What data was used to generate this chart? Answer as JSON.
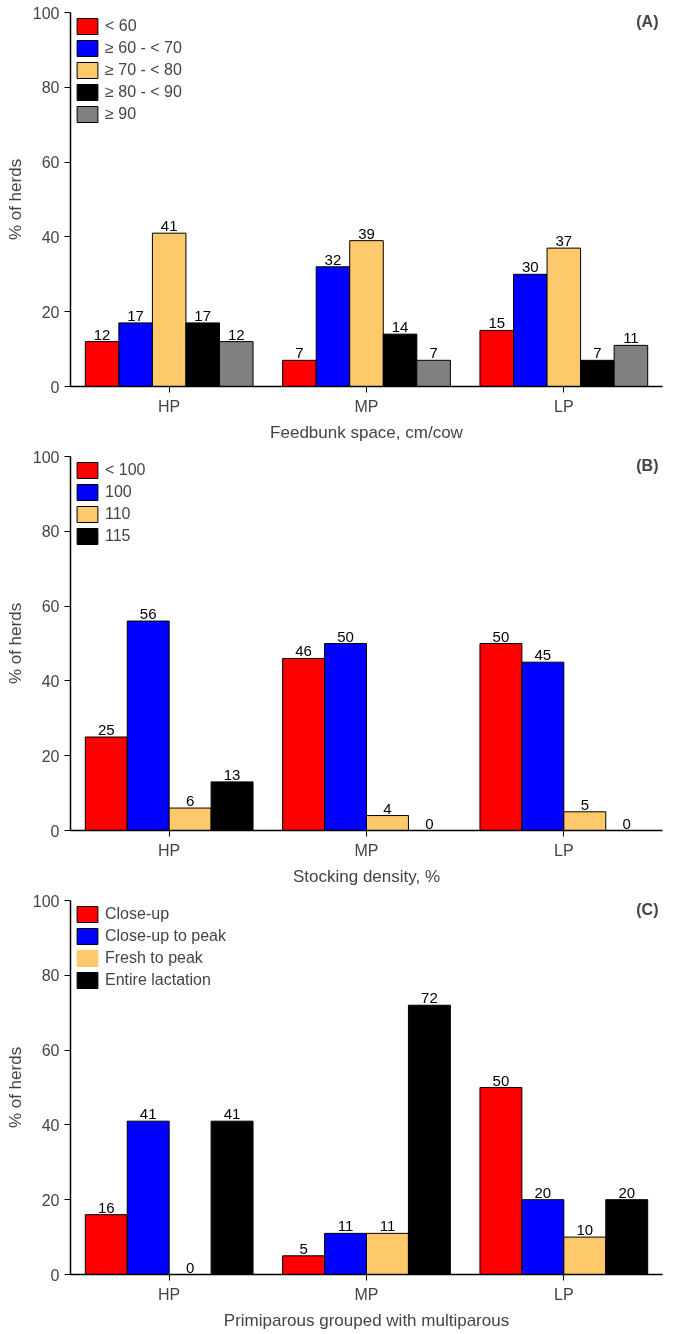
{
  "chart_data": [
    {
      "type": "bar",
      "categories": [
        "HP",
        "MP",
        "LP"
      ],
      "xlabel": "Feedbunk space, cm/cow",
      "ylabel": "% of herds",
      "ylim": [
        0,
        100
      ],
      "yticks": [
        0,
        20,
        40,
        60,
        80,
        100
      ],
      "grid": false,
      "legend": "top left",
      "data_labels": true,
      "annotations": [
        "(A)"
      ],
      "series": [
        {
          "name": "< 60",
          "color": "#ff0000",
          "values": [
            12,
            7,
            15
          ]
        },
        {
          "name": "≥ 60 - < 70",
          "color": "#0000ff",
          "values": [
            17,
            32,
            30
          ]
        },
        {
          "name": "≥ 70 - < 80",
          "color": "#fdc96b",
          "values": [
            41,
            39,
            37
          ]
        },
        {
          "name": "≥ 80 - < 90",
          "color": "#000000",
          "values": [
            17,
            14,
            7
          ]
        },
        {
          "name": "≥ 90",
          "color": "#808080",
          "values": [
            12,
            7,
            11
          ]
        }
      ]
    },
    {
      "type": "bar",
      "categories": [
        "HP",
        "MP",
        "LP"
      ],
      "xlabel": "Stocking density, %",
      "ylabel": "% of herds",
      "ylim": [
        0,
        100
      ],
      "yticks": [
        0,
        20,
        40,
        60,
        80,
        100
      ],
      "grid": false,
      "legend": "top left",
      "data_labels": true,
      "annotations": [
        "(B)"
      ],
      "series": [
        {
          "name": "< 100",
          "color": "#ff0000",
          "values": [
            25,
            46,
            50
          ]
        },
        {
          "name": "100",
          "color": "#0000ff",
          "values": [
            56,
            50,
            45
          ]
        },
        {
          "name": "110",
          "color": "#fdc96b",
          "values": [
            6,
            4,
            5
          ]
        },
        {
          "name": "115",
          "color": "#000000",
          "values": [
            13,
            0,
            0
          ]
        }
      ]
    },
    {
      "type": "bar",
      "categories": [
        "HP",
        "MP",
        "LP"
      ],
      "xlabel": "Primiparous grouped with multiparous",
      "ylabel": "% of herds",
      "ylim": [
        0,
        100
      ],
      "yticks": [
        0,
        20,
        40,
        60,
        80,
        100
      ],
      "grid": false,
      "legend": "top left",
      "data_labels": true,
      "annotations": [
        "(C)"
      ],
      "series": [
        {
          "name": "Close-up",
          "color": "#ff0000",
          "values": [
            16,
            5,
            50
          ]
        },
        {
          "name": "Close-up to peak",
          "color": "#0000ff",
          "values": [
            41,
            11,
            20
          ]
        },
        {
          "name": "Fresh to peak",
          "color": "#fdc96b",
          "values": [
            0,
            11,
            10
          ]
        },
        {
          "name": "Entire lactation",
          "color": "#000000",
          "values": [
            41,
            72,
            20
          ]
        }
      ]
    }
  ]
}
